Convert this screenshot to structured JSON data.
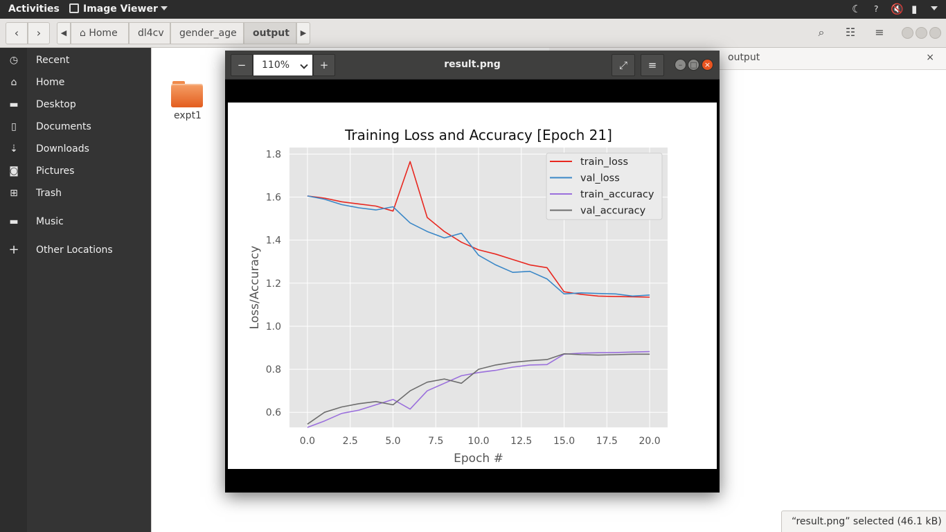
{
  "topbar": {
    "activities": "Activities",
    "app_name": "Image Viewer"
  },
  "fm_header": {
    "crumbs": [
      "Home",
      "dl4cv",
      "gender_age",
      "output"
    ]
  },
  "sidebar": {
    "items": [
      {
        "label": "Recent",
        "icon": "clock-icon"
      },
      {
        "label": "Home",
        "icon": "home-icon"
      },
      {
        "label": "Desktop",
        "icon": "folder-icon"
      },
      {
        "label": "Documents",
        "icon": "document-icon"
      },
      {
        "label": "Downloads",
        "icon": "download-icon"
      },
      {
        "label": "Pictures",
        "icon": "camera-icon"
      },
      {
        "label": "Trash",
        "icon": "trash-icon"
      },
      {
        "label": "Music",
        "icon": "folder-icon"
      },
      {
        "label": "Other Locations",
        "icon": "plus-icon"
      }
    ]
  },
  "files": {
    "folder_name": "expt1"
  },
  "output_tab": {
    "title": "output"
  },
  "status": {
    "text": "“result.png” selected  (46.1 kB)"
  },
  "viewer": {
    "zoom": "110%",
    "title": "result.png"
  },
  "colors": {
    "accent": "#e95420",
    "train_loss": "#e8271f",
    "val_loss": "#3a87c7",
    "train_accuracy": "#9a6fdc",
    "val_accuracy": "#6d6d6d"
  },
  "chart_data": {
    "type": "line",
    "title": "Training Loss and Accuracy [Epoch 21]",
    "xlabel": "Epoch #",
    "ylabel": "Loss/Accuracy",
    "xlim": [
      -1.05,
      21.05
    ],
    "ylim": [
      0.53,
      1.83
    ],
    "xticks": [
      "0.0",
      "2.5",
      "5.0",
      "7.5",
      "10.0",
      "12.5",
      "15.0",
      "17.5",
      "20.0"
    ],
    "yticks": [
      "0.6",
      "0.8",
      "1.0",
      "1.2",
      "1.4",
      "1.6",
      "1.8"
    ],
    "grid": true,
    "legend_position": "top-right",
    "x": [
      0,
      1,
      2,
      3,
      4,
      5,
      6,
      7,
      8,
      9,
      10,
      11,
      12,
      13,
      14,
      15,
      16,
      17,
      18,
      19,
      20
    ],
    "series": [
      {
        "name": "train_loss",
        "values": [
          1.605,
          1.595,
          1.578,
          1.568,
          1.558,
          1.535,
          1.765,
          1.505,
          1.44,
          1.39,
          1.355,
          1.335,
          1.31,
          1.285,
          1.272,
          1.16,
          1.148,
          1.14,
          1.138,
          1.137,
          1.135
        ]
      },
      {
        "name": "val_loss",
        "values": [
          1.605,
          1.59,
          1.565,
          1.55,
          1.54,
          1.555,
          1.48,
          1.44,
          1.41,
          1.432,
          1.33,
          1.285,
          1.25,
          1.255,
          1.22,
          1.15,
          1.155,
          1.152,
          1.15,
          1.14,
          1.145
        ]
      },
      {
        "name": "train_accuracy",
        "values": [
          0.53,
          0.56,
          0.595,
          0.61,
          0.635,
          0.66,
          0.615,
          0.7,
          0.735,
          0.77,
          0.785,
          0.795,
          0.81,
          0.82,
          0.822,
          0.87,
          0.875,
          0.877,
          0.878,
          0.88,
          0.882
        ]
      },
      {
        "name": "val_accuracy",
        "values": [
          0.545,
          0.6,
          0.625,
          0.64,
          0.65,
          0.635,
          0.7,
          0.74,
          0.755,
          0.735,
          0.8,
          0.82,
          0.832,
          0.84,
          0.845,
          0.872,
          0.868,
          0.866,
          0.868,
          0.87,
          0.87
        ]
      }
    ]
  }
}
